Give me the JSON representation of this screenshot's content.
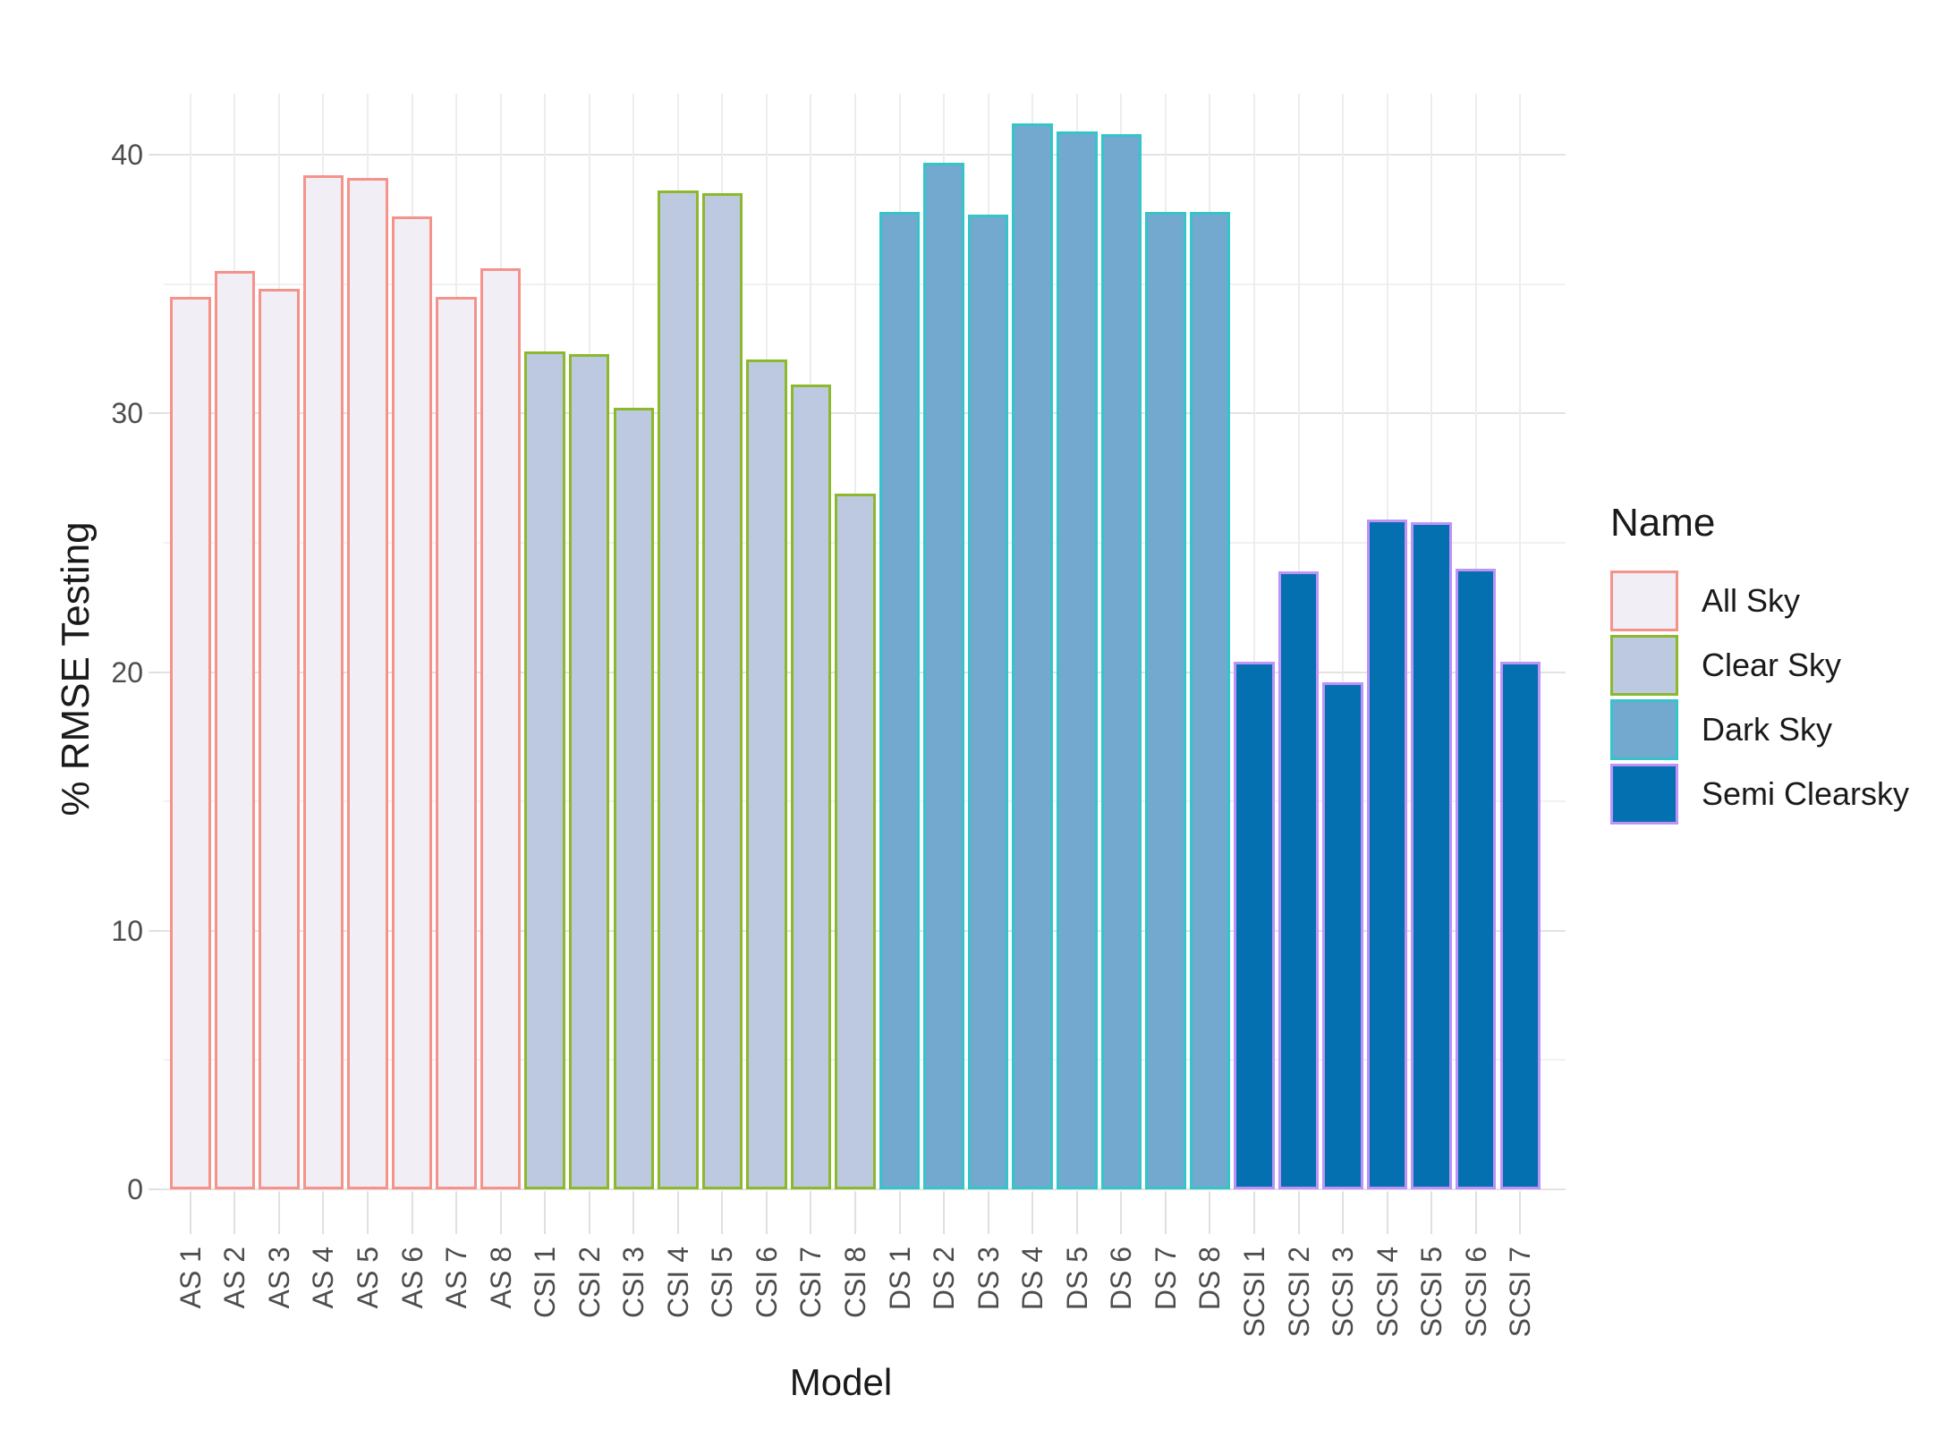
{
  "chart_data": {
    "type": "bar",
    "title": "",
    "xlabel": "Model",
    "ylabel": "% RMSE Testing",
    "legend_title": "Name",
    "legend_position": "right",
    "grid": true,
    "ylim": [
      0,
      42.3
    ],
    "yticks": [
      0,
      10,
      20,
      30,
      40
    ],
    "yticks_minor": [
      5,
      15,
      25,
      35
    ],
    "groups": [
      {
        "name": "All Sky",
        "fill": "#F1EEF6",
        "stroke": "#F5928A",
        "categories": [
          "AS 1",
          "AS 2",
          "AS 3",
          "AS 4",
          "AS 5",
          "AS 6",
          "AS 7",
          "AS 8"
        ],
        "values": [
          34.5,
          35.5,
          34.8,
          39.2,
          39.1,
          37.6,
          34.5,
          35.6
        ]
      },
      {
        "name": "Clear Sky",
        "fill": "#BDC9E1",
        "stroke": "#8CB82B",
        "categories": [
          "CSI 1",
          "CSI 2",
          "CSI 3",
          "CSI 4",
          "CSI 5",
          "CSI 6",
          "CSI 7",
          "CSI 8"
        ],
        "values": [
          32.4,
          32.3,
          30.2,
          38.6,
          38.5,
          32.1,
          31.1,
          26.9
        ]
      },
      {
        "name": "Dark Sky",
        "fill": "#74A9CF",
        "stroke": "#35C4C9",
        "categories": [
          "DS 1",
          "DS 2",
          "DS 3",
          "DS 4",
          "DS 5",
          "DS 6",
          "DS 7",
          "DS 8"
        ],
        "values": [
          37.8,
          39.7,
          37.7,
          41.2,
          40.9,
          40.8,
          37.8,
          37.8
        ]
      },
      {
        "name": "Semi Clearsky",
        "fill": "#0570B0",
        "stroke": "#BD93F7",
        "categories": [
          "SCSI 1",
          "SCSI 2",
          "SCSI 3",
          "SCSI 4",
          "SCSI 5",
          "SCSI 6",
          "SCSI 7"
        ],
        "values": [
          20.4,
          23.9,
          19.6,
          25.9,
          25.8,
          24.0,
          20.4
        ]
      }
    ]
  }
}
